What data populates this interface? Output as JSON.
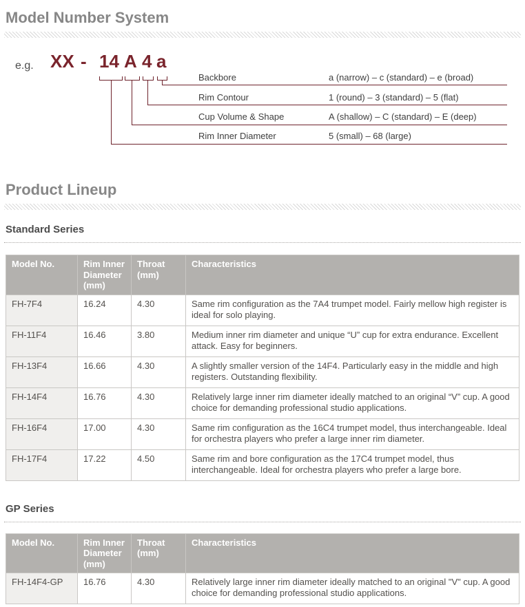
{
  "colors": {
    "maroon_accent": "#7a242c",
    "connector_line": "#6d222b",
    "section_heading": "#878787",
    "sub_heading": "#4b4b4b",
    "table_header_bg": "#b3b1ae",
    "table_firstcol_bg": "#f0efed",
    "body_text": "#53504d"
  },
  "model_number_system": {
    "title": "Model Number System",
    "example": {
      "prefix": "e.g.",
      "segments": [
        "XX",
        "-",
        "14",
        "A",
        "4",
        "a"
      ]
    },
    "legend_rows": [
      {
        "label": "Backbore",
        "range": "a (narrow) – c (standard) – e (broad)"
      },
      {
        "label": "Rim Contour",
        "range": "1 (round) – 3 (standard) – 5 (flat)"
      },
      {
        "label": "Cup Volume & Shape",
        "range": "A (shallow) – C (standard) – E (deep)"
      },
      {
        "label": "Rim Inner Diameter",
        "range": "5 (small) – 68 (large)"
      }
    ]
  },
  "product_lineup": {
    "title": "Product Lineup",
    "standard_series": {
      "title": "Standard Series",
      "table": {
        "columns": [
          "Model No.",
          "Rim Inner Diameter (mm)",
          "Throat (mm)",
          "Characteristics"
        ],
        "rows": [
          [
            "FH-7F4",
            "16.24",
            "4.30",
            "Same rim configuration as the 7A4 trumpet model. Fairly mellow high register is ideal for solo playing."
          ],
          [
            "FH-11F4",
            "16.46",
            "3.80",
            "Medium inner rim diameter and unique “U” cup for extra endurance. Excellent attack. Easy for beginners."
          ],
          [
            "FH-13F4",
            "16.66",
            "4.30",
            "A slightly smaller version of the 14F4. Particularly easy in the middle and high registers. Outstanding flexibility."
          ],
          [
            "FH-14F4",
            "16.76",
            "4.30",
            "Relatively large inner rim diameter ideally matched to an original “V” cup. A good choice for demanding professional studio applications."
          ],
          [
            "FH-16F4",
            "17.00",
            "4.30",
            "Same rim configuration as the 16C4 trumpet model, thus interchangeable. Ideal for orchestra players who prefer a large inner rim diameter."
          ],
          [
            "FH-17F4",
            "17.22",
            "4.50",
            "Same rim and bore configuration as the 17C4 trumpet model, thus interchangeable. Ideal for orchestra players who prefer a large bore."
          ]
        ]
      }
    },
    "gp_series": {
      "title": "GP Series",
      "table": {
        "columns": [
          "Model No.",
          "Rim Inner Diameter (mm)",
          "Throat (mm)",
          "Characteristics"
        ],
        "rows": [
          [
            "FH-14F4-GP",
            "16.76",
            "4.30",
            "Relatively large inner rim diameter ideally matched to an original \"V\" cup. A good choice for demanding professional studio applications."
          ]
        ]
      }
    }
  }
}
